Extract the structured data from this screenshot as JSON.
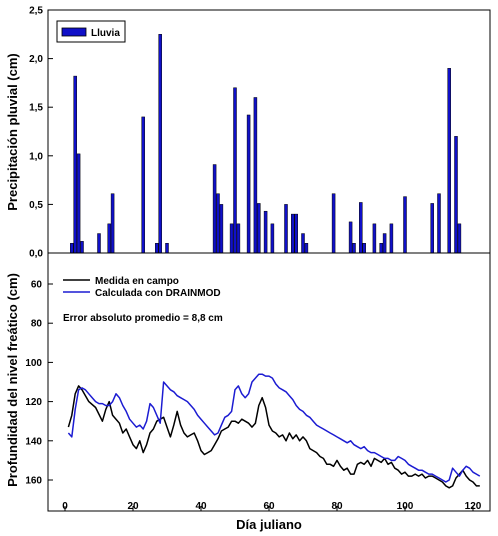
{
  "chart_data": [
    {
      "type": "bar",
      "ylabel": "Precipitación pluvial (cm)",
      "ylim": [
        0,
        2.5
      ],
      "xlim": [
        -5,
        125
      ],
      "yticks": [
        "0,0",
        "0,5",
        "1,0",
        "1,5",
        "2,0",
        "2,5"
      ],
      "legend_position": "top-left",
      "series": [
        {
          "name": "Lluvia",
          "color": "#1010c8",
          "x": [
            2,
            3,
            4,
            5,
            10,
            13,
            14,
            23,
            27,
            28,
            30,
            44,
            45,
            46,
            49,
            50,
            51,
            54,
            56,
            57,
            59,
            61,
            65,
            67,
            68,
            70,
            71,
            79,
            84,
            85,
            87,
            88,
            91,
            93,
            94,
            96,
            100,
            108,
            110,
            113,
            115,
            116
          ],
          "values": [
            0.1,
            1.82,
            1.02,
            0.12,
            0.2,
            0.3,
            0.61,
            1.4,
            0.1,
            2.25,
            0.1,
            0.91,
            0.61,
            0.5,
            0.3,
            1.7,
            0.3,
            1.42,
            1.6,
            0.51,
            0.43,
            0.3,
            0.5,
            0.4,
            0.4,
            0.2,
            0.1,
            0.61,
            0.32,
            0.1,
            0.52,
            0.1,
            0.3,
            0.1,
            0.2,
            0.3,
            0.58,
            0.51,
            0.61,
            1.9,
            1.2,
            0.3
          ]
        }
      ]
    },
    {
      "type": "line",
      "xlabel": "Día juliano",
      "ylabel": "Profundidad del nivel freático (cm)",
      "ylim": [
        165,
        45
      ],
      "y_inverted": true,
      "xlim": [
        -5,
        125
      ],
      "yticks": [
        "60",
        "80",
        "100",
        "120",
        "140",
        "160"
      ],
      "xticks": [
        "0",
        "20",
        "40",
        "60",
        "80",
        "100",
        "120"
      ],
      "annotation": "Error absoluto promedio = 8,8 cm",
      "legend_position": "top-left",
      "series": [
        {
          "name": "Medida en campo",
          "color": "#000000",
          "x": [
            1,
            2,
            3,
            4,
            5,
            7,
            9,
            11,
            12,
            13,
            14,
            15,
            16,
            17,
            18,
            19,
            20,
            21,
            22,
            23,
            24,
            25,
            26,
            27,
            28,
            29,
            30,
            31,
            32,
            33,
            34,
            35,
            36,
            37,
            38,
            39,
            40,
            41,
            42,
            43,
            44,
            45,
            46,
            47,
            48,
            49,
            50,
            51,
            52,
            53,
            54,
            55,
            56,
            57,
            58,
            59,
            60,
            61,
            62,
            63,
            64,
            65,
            66,
            67,
            68,
            69,
            70,
            71,
            72,
            73,
            74,
            75,
            76,
            77,
            78,
            79,
            80,
            81,
            82,
            83,
            84,
            85,
            86,
            87,
            88,
            89,
            90,
            91,
            92,
            93,
            94,
            95,
            96,
            97,
            98,
            99,
            100,
            101,
            102,
            103,
            104,
            105,
            106,
            107,
            108,
            109,
            110,
            111,
            112,
            113,
            114,
            115,
            116,
            117,
            118,
            119,
            120,
            121,
            122
          ],
          "values": [
            133,
            127,
            116,
            112,
            114,
            120,
            123,
            130,
            124,
            120,
            127,
            129,
            131,
            136,
            134,
            138,
            142,
            144,
            140,
            146,
            142,
            136,
            134,
            130,
            129,
            128,
            133,
            138,
            132,
            125,
            132,
            136,
            138,
            137,
            136,
            140,
            145,
            147,
            146,
            145,
            142,
            139,
            135,
            134,
            133,
            130,
            130,
            131,
            129,
            130,
            131,
            133,
            131,
            122,
            118,
            123,
            132,
            135,
            136,
            138,
            137,
            140,
            136,
            139,
            137,
            140,
            138,
            140,
            144,
            145,
            146,
            148,
            149,
            152,
            152,
            153,
            150,
            153,
            155,
            154,
            157,
            157,
            152,
            151,
            152,
            150,
            153,
            149,
            150,
            151,
            149,
            152,
            151,
            154,
            155,
            157,
            156,
            158,
            158,
            157,
            158,
            157,
            159,
            158,
            158,
            159,
            160,
            161,
            163,
            164,
            163,
            159,
            157,
            155,
            158,
            160,
            161,
            163,
            163
          ]
        },
        {
          "name": "Calculada con DRAINMOD",
          "color": "#1c1cd2",
          "x": [
            1,
            2,
            3,
            4,
            5,
            6,
            7,
            8,
            9,
            10,
            11,
            12,
            13,
            14,
            15,
            16,
            17,
            18,
            19,
            20,
            21,
            22,
            23,
            24,
            25,
            26,
            27,
            28,
            29,
            30,
            31,
            32,
            33,
            34,
            35,
            36,
            37,
            38,
            39,
            40,
            41,
            42,
            43,
            44,
            45,
            46,
            47,
            48,
            49,
            50,
            51,
            52,
            53,
            54,
            55,
            56,
            57,
            58,
            59,
            60,
            61,
            62,
            63,
            64,
            65,
            66,
            67,
            68,
            69,
            70,
            71,
            72,
            73,
            74,
            75,
            76,
            77,
            78,
            79,
            80,
            81,
            82,
            83,
            84,
            85,
            86,
            87,
            88,
            89,
            90,
            91,
            92,
            93,
            94,
            95,
            96,
            97,
            98,
            99,
            100,
            101,
            102,
            103,
            104,
            105,
            106,
            107,
            108,
            109,
            110,
            111,
            112,
            113,
            114,
            115,
            116,
            117,
            118,
            119,
            120,
            121,
            122
          ],
          "values": [
            136,
            138,
            124,
            114,
            113,
            114,
            116,
            118,
            120,
            121,
            121,
            122,
            122,
            120,
            116,
            118,
            122,
            125,
            129,
            131,
            133,
            132,
            134,
            130,
            121,
            123,
            127,
            131,
            110,
            112,
            114,
            115,
            117,
            118,
            119,
            120,
            122,
            124,
            127,
            129,
            131,
            133,
            135,
            137,
            136,
            132,
            128,
            127,
            125,
            114,
            112,
            116,
            118,
            116,
            110,
            108,
            106,
            106,
            107,
            107,
            108,
            111,
            113,
            114,
            115,
            117,
            119,
            122,
            124,
            125,
            127,
            128,
            130,
            132,
            133,
            134,
            135,
            136,
            137,
            138,
            139,
            140,
            141,
            140,
            142,
            143,
            144,
            143,
            145,
            146,
            146,
            147,
            148,
            149,
            149,
            150,
            150,
            148,
            149,
            150,
            152,
            153,
            154,
            155,
            155,
            156,
            157,
            157,
            158,
            159,
            160,
            161,
            160,
            154,
            156,
            158,
            155,
            153,
            154,
            156,
            157,
            158
          ]
        }
      ]
    }
  ]
}
